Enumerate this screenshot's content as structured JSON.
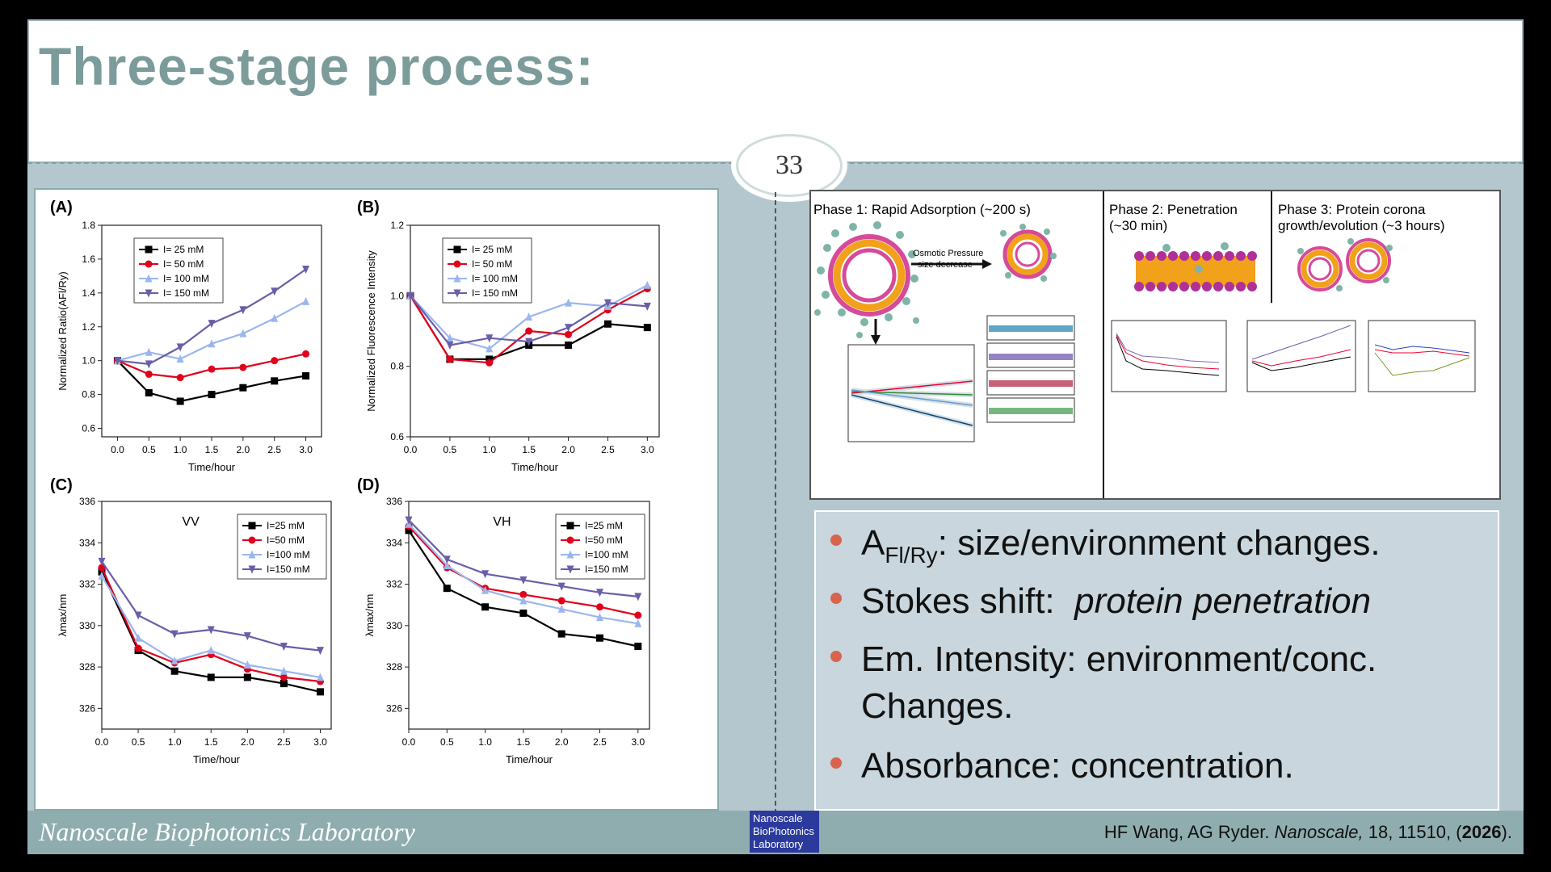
{
  "slide": {
    "title": "Three-stage process:",
    "page_number": "33",
    "footer_lab": "Nanoscale Biophotonics Laboratory",
    "citation": {
      "authors": "HF Wang, AG Ryder.",
      "journal": "Nanoscale,",
      "ref": "18, 11510, (",
      "year": "2026",
      "end": ")."
    },
    "logo_lines": [
      "Nanoscale",
      "BioPhotonics",
      "Laboratory"
    ]
  },
  "phases": {
    "p1": "Phase 1: Rapid Adsorption (~200 s)",
    "p2a": "Phase 2: Penetration",
    "p2b": "(~30 min)",
    "p3a": "Phase 3: Protein corona",
    "p3b": "growth/evolution (~3 hours)",
    "osmotic": "Osmotic Pressure",
    "size": "size decrease"
  },
  "bullets": [
    {
      "pre": "A",
      "sub": "Fl/Ry",
      "post": ": size/environment changes."
    },
    {
      "pre": "Stokes shift:  ",
      "em": "protein penetration"
    },
    {
      "line1": "Em. Intensity: environment/conc.",
      "line2": "Changes."
    },
    {
      "pre": "Absorbance: concentration."
    }
  ],
  "colors": {
    "s25": "#000000",
    "s50": "#e0001b",
    "s100": "#9bb6ee",
    "s150": "#6a5ea8"
  },
  "chart_data": [
    {
      "type": "line",
      "panel": "(A)",
      "xlabel": "Time/hour",
      "ylabel": "Normalized Ratio(AFl/Ry)",
      "x": [
        0,
        0.5,
        1.0,
        1.5,
        2.0,
        2.5,
        3.0
      ],
      "xlim": [
        -0.25,
        3.25
      ],
      "ylim": [
        0.55,
        1.8
      ],
      "xticks": [
        "0.0",
        "0.5",
        "1.0",
        "1.5",
        "2.0",
        "2.5",
        "3.0"
      ],
      "yticks": [
        "0.6",
        "0.8",
        "1.0",
        "1.2",
        "1.4",
        "1.6",
        "1.8"
      ],
      "legend": "top-left",
      "series": [
        {
          "name": "I= 25 mM",
          "values": [
            1.0,
            0.81,
            0.76,
            0.8,
            0.84,
            0.88,
            0.91
          ]
        },
        {
          "name": "I= 50 mM",
          "values": [
            1.0,
            0.92,
            0.9,
            0.95,
            0.96,
            1.0,
            1.04
          ]
        },
        {
          "name": "I= 100 mM",
          "values": [
            1.0,
            1.05,
            1.01,
            1.1,
            1.16,
            1.25,
            1.35
          ]
        },
        {
          "name": "I= 150 mM",
          "values": [
            1.0,
            0.98,
            1.08,
            1.22,
            1.3,
            1.41,
            1.54
          ]
        }
      ]
    },
    {
      "type": "line",
      "panel": "(B)",
      "xlabel": "Time/hour",
      "ylabel": "Normalized Fluorescence Intensity",
      "x": [
        0,
        0.5,
        1.0,
        1.5,
        2.0,
        2.5,
        3.0
      ],
      "xlim": [
        0,
        3.15
      ],
      "ylim": [
        0.6,
        1.2
      ],
      "xticks": [
        "0.0",
        "0.5",
        "1.0",
        "1.5",
        "2.0",
        "2.5",
        "3.0"
      ],
      "yticks": [
        "0.6",
        "0.8",
        "1.0",
        "1.2"
      ],
      "legend": "top-left",
      "series": [
        {
          "name": "I= 25 mM",
          "values": [
            1.0,
            0.82,
            0.82,
            0.86,
            0.86,
            0.92,
            0.91
          ]
        },
        {
          "name": "I= 50 mM",
          "values": [
            1.0,
            0.82,
            0.81,
            0.9,
            0.89,
            0.96,
            1.02
          ]
        },
        {
          "name": "I= 100 mM",
          "values": [
            1.0,
            0.88,
            0.85,
            0.94,
            0.98,
            0.97,
            1.03
          ]
        },
        {
          "name": "I= 150 mM",
          "values": [
            1.0,
            0.86,
            0.88,
            0.87,
            0.91,
            0.98,
            0.97
          ]
        }
      ]
    },
    {
      "type": "line",
      "panel": "(C)",
      "annotation": "VV",
      "xlabel": "Time/hour",
      "ylabel": "λmax/nm",
      "x": [
        0,
        0.5,
        1.0,
        1.5,
        2.0,
        2.5,
        3.0
      ],
      "xlim": [
        0,
        3.15
      ],
      "ylim": [
        325,
        336
      ],
      "xticks": [
        "0.0",
        "0.5",
        "1.0",
        "1.5",
        "2.0",
        "2.5",
        "3.0"
      ],
      "yticks": [
        "326",
        "328",
        "330",
        "332",
        "334",
        "336"
      ],
      "legend": "top-right",
      "series": [
        {
          "name": "I=25 mM",
          "values": [
            332.6,
            328.8,
            327.8,
            327.5,
            327.5,
            327.2,
            326.8
          ]
        },
        {
          "name": "I=50 mM",
          "values": [
            332.8,
            328.9,
            328.2,
            328.6,
            327.9,
            327.5,
            327.3
          ]
        },
        {
          "name": "I=100 mM",
          "values": [
            332.4,
            329.4,
            328.3,
            328.8,
            328.1,
            327.8,
            327.5
          ]
        },
        {
          "name": "I=150 mM",
          "values": [
            333.1,
            330.5,
            329.6,
            329.8,
            329.5,
            329.0,
            328.8
          ]
        }
      ]
    },
    {
      "type": "line",
      "panel": "(D)",
      "annotation": "VH",
      "xlabel": "Time/hour",
      "ylabel": "λmax/nm",
      "x": [
        0,
        0.5,
        1.0,
        1.5,
        2.0,
        2.5,
        3.0
      ],
      "xlim": [
        0,
        3.15
      ],
      "ylim": [
        325,
        336
      ],
      "xticks": [
        "0.0",
        "0.5",
        "1.0",
        "1.5",
        "2.0",
        "2.5",
        "3.0"
      ],
      "yticks": [
        "326",
        "328",
        "330",
        "332",
        "334",
        "336"
      ],
      "legend": "top-right",
      "series": [
        {
          "name": "I=25 mM",
          "values": [
            334.6,
            331.8,
            330.9,
            330.6,
            329.6,
            329.4,
            329.0
          ]
        },
        {
          "name": "I=50 mM",
          "values": [
            334.8,
            332.8,
            331.8,
            331.5,
            331.2,
            330.9,
            330.5
          ]
        },
        {
          "name": "I=100 mM",
          "values": [
            334.9,
            332.9,
            331.7,
            331.2,
            330.8,
            330.4,
            330.1
          ]
        },
        {
          "name": "I=150 mM",
          "values": [
            335.1,
            333.2,
            332.5,
            332.2,
            331.9,
            331.6,
            331.4
          ]
        }
      ]
    }
  ]
}
